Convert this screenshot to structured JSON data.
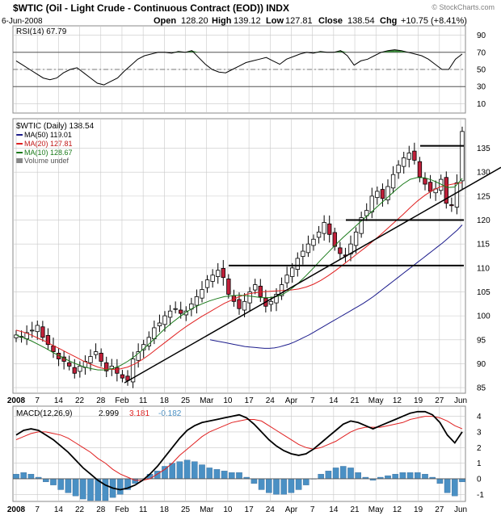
{
  "header": {
    "title": "$WTIC (Oil - Light Crude - Continuous Contract (EOD)) INDX",
    "date": "6-Jun-2008",
    "open_label": "Open",
    "open": "128.20",
    "high_label": "High",
    "high": "139.12",
    "low_label": "Low",
    "low": "127.81",
    "close_label": "Close",
    "close": "138.54",
    "chg_label": "Chg",
    "chg": "+10.75 (+8.41%)",
    "watermark": "© StockCharts.com"
  },
  "colors": {
    "ma50": "#1c1c8c",
    "ma20": "#e02020",
    "ma10": "#1a7a1a",
    "up_candle": "#ffffff",
    "down_candle": "#c0203a",
    "macd": "#000000",
    "signal": "#e02020",
    "histogram": "#4a90c4",
    "rsi_line": "#000000",
    "rsi_fill": "#3a8a3a",
    "grid": "#c8c8c8"
  },
  "x_axis": {
    "labels": [
      "2008",
      "7",
      "14",
      "22",
      "28",
      "Feb",
      "11",
      "18",
      "25",
      "Mar",
      "10",
      "17",
      "24",
      "Apr",
      "7",
      "14",
      "21",
      "May",
      "12",
      "19",
      "27",
      "Jun"
    ]
  },
  "chart_data": [
    {
      "type": "line",
      "title": "RSI(14) 67.79",
      "legend": [
        "RSI(14) 67.79"
      ],
      "ylim": [
        0,
        100
      ],
      "yticks": [
        10,
        30,
        50,
        70,
        90
      ],
      "guides": [
        30,
        50,
        70
      ],
      "series": [
        {
          "name": "RSI(14)",
          "values": [
            60,
            55,
            50,
            45,
            40,
            38,
            40,
            46,
            50,
            52,
            46,
            40,
            34,
            32,
            36,
            40,
            48,
            55,
            62,
            66,
            68,
            70,
            70,
            69,
            71,
            70,
            72,
            64,
            56,
            50,
            47,
            46,
            50,
            54,
            58,
            60,
            62,
            64,
            60,
            56,
            62,
            65,
            68,
            70,
            69,
            71,
            70,
            70,
            72,
            66,
            55,
            60,
            62,
            66,
            70,
            72,
            73,
            72,
            70,
            68,
            66,
            62,
            56,
            50,
            50,
            62,
            68
          ]
        }
      ]
    },
    {
      "type": "candlestick",
      "title": "$WTIC (Daily) 138.54",
      "legend": [
        "$WTIC (Daily) 138.54",
        "MA(50) 119.01",
        "MA(20) 127.81",
        "MA(10) 128.67",
        "Volume undef"
      ],
      "ylim": [
        84,
        141
      ],
      "yticks": [
        85,
        90,
        95,
        100,
        105,
        110,
        115,
        120,
        125,
        130,
        135
      ],
      "closes": [
        96.0,
        95.5,
        96.5,
        97.0,
        98.0,
        95.5,
        94.0,
        92.5,
        91.0,
        90.5,
        89.5,
        88.0,
        89.5,
        90.5,
        91.5,
        92.5,
        90.5,
        88.5,
        89.5,
        88.0,
        87.0,
        86.5,
        91.0,
        92.5,
        94.0,
        95.5,
        97.5,
        98.5,
        100.0,
        101.0,
        101.5,
        100.5,
        101.0,
        102.5,
        104.0,
        105.5,
        107.5,
        108.5,
        109.5,
        108.0,
        104.5,
        103.0,
        101.5,
        103.0,
        105.0,
        106.5,
        104.0,
        102.0,
        103.0,
        104.5,
        106.5,
        108.5,
        110.0,
        112.0,
        113.5,
        115.0,
        116.0,
        117.5,
        119.5,
        117.0,
        114.5,
        113.0,
        112.5,
        115.0,
        117.5,
        120.5,
        122.0,
        125.0,
        126.0,
        124.5,
        127.0,
        129.5,
        131.5,
        133.0,
        134.0,
        132.5,
        129.0,
        127.5,
        126.0,
        126.5,
        128.5,
        123.5,
        123.0,
        127.8,
        138.5
      ],
      "series": [
        {
          "name": "MA(50) 119.01",
          "values": [
            95.0,
            94.8,
            94.6,
            94.4,
            94.2,
            94.0,
            93.8,
            93.6,
            93.5,
            93.4,
            93.3,
            93.2,
            93.2,
            93.3,
            93.5,
            93.8,
            94.1,
            94.5,
            95.0,
            95.5,
            96.0,
            96.6,
            97.2,
            97.8,
            98.4,
            99.0,
            99.6,
            100.2,
            100.8,
            101.4,
            102.0,
            102.6,
            103.3,
            104.0,
            104.8,
            105.6,
            106.4,
            107.2,
            108.0,
            108.8,
            109.6,
            110.4,
            111.2,
            112.0,
            112.8,
            113.6,
            114.4,
            115.2,
            116.1,
            117.0,
            117.9,
            119.0
          ]
        },
        {
          "name": "MA(20) 127.81",
          "values": [
            97.0,
            96.6,
            96.0,
            95.3,
            94.6,
            93.8,
            93.0,
            92.2,
            91.4,
            90.6,
            89.9,
            89.3,
            88.9,
            88.8,
            88.9,
            89.3,
            90.0,
            90.9,
            92.0,
            93.2,
            94.4,
            95.6,
            96.8,
            97.9,
            98.9,
            99.9,
            100.8,
            101.7,
            102.6,
            103.3,
            104.0,
            104.5,
            104.8,
            105.0,
            105.1,
            105.2,
            105.3,
            105.4,
            105.6,
            106.0,
            106.6,
            107.4,
            108.4,
            109.5,
            110.7,
            111.9,
            113.1,
            114.3,
            115.6,
            116.9,
            118.3,
            119.7,
            121.1,
            122.6,
            124.0,
            125.2,
            126.2,
            126.9,
            127.3,
            127.6,
            127.8
          ]
        },
        {
          "name": "MA(10) 128.67",
          "values": [
            96.0,
            95.4,
            94.8,
            94.0,
            93.2,
            92.3,
            91.5,
            90.7,
            90.0,
            89.4,
            89.0,
            88.7,
            88.7,
            89.0,
            89.6,
            90.5,
            91.6,
            92.9,
            94.3,
            95.8,
            97.3,
            98.6,
            99.8,
            100.9,
            101.8,
            102.5,
            103.1,
            103.6,
            104.0,
            104.2,
            104.3,
            104.2,
            104.0,
            103.8,
            103.8,
            104.0,
            104.6,
            105.6,
            106.9,
            108.4,
            110.0,
            111.7,
            113.3,
            114.9,
            116.4,
            117.8,
            119.2,
            120.6,
            122.0,
            123.4,
            124.8,
            126.2,
            127.5,
            128.5,
            128.9,
            128.8,
            128.3,
            127.6,
            126.8,
            126.9,
            128.7
          ]
        }
      ],
      "trendlines": [
        {
          "from": [
            "Feb 4",
            86
          ],
          "to": [
            "Jun 6",
            131
          ]
        },
        {
          "from": [
            "Mar 14",
            110.5
          ],
          "to": [
            "Jun 6",
            110.5
          ]
        },
        {
          "from": [
            "Apr 28",
            120
          ],
          "to": [
            "Jun 6",
            120
          ]
        },
        {
          "from": [
            "May 22",
            135.5
          ],
          "to": [
            "Jun 6",
            135.5
          ]
        }
      ]
    },
    {
      "type": "line+bar",
      "title": "MACD(12,26,9) 2.999, 3.181, -0.182",
      "legend": [
        "MACD(12,26,9)",
        "2.999",
        "3.181",
        "-0.182"
      ],
      "ylim": [
        -1.4,
        4.6
      ],
      "yticks": [
        -1,
        0,
        1,
        2,
        3,
        4
      ],
      "series": [
        {
          "name": "MACD",
          "values": [
            2.8,
            3.1,
            3.2,
            3.1,
            2.8,
            2.5,
            2.1,
            1.7,
            1.2,
            0.7,
            0.3,
            -0.1,
            -0.4,
            -0.6,
            -0.7,
            -0.6,
            -0.4,
            -0.1,
            0.3,
            0.8,
            1.4,
            2.0,
            2.6,
            3.1,
            3.4,
            3.6,
            3.7,
            3.8,
            3.9,
            4.0,
            4.1,
            3.9,
            3.5,
            3.0,
            2.5,
            2.1,
            1.8,
            1.6,
            1.5,
            1.6,
            1.9,
            2.3,
            2.7,
            3.1,
            3.5,
            3.7,
            3.6,
            3.4,
            3.2,
            3.4,
            3.6,
            3.8,
            4.0,
            4.2,
            4.3,
            4.3,
            4.1,
            3.6,
            2.8,
            2.3,
            3.0
          ]
        },
        {
          "name": "Signal",
          "values": [
            2.5,
            2.7,
            2.9,
            3.0,
            3.0,
            2.9,
            2.8,
            2.6,
            2.3,
            2.0,
            1.7,
            1.3,
            1.0,
            0.6,
            0.3,
            0.1,
            -0.1,
            -0.1,
            0.0,
            0.3,
            0.6,
            1.0,
            1.5,
            1.9,
            2.3,
            2.7,
            3.0,
            3.2,
            3.4,
            3.6,
            3.7,
            3.8,
            3.8,
            3.7,
            3.4,
            3.1,
            2.8,
            2.5,
            2.2,
            2.0,
            1.9,
            2.0,
            2.2,
            2.4,
            2.7,
            3.0,
            3.2,
            3.3,
            3.3,
            3.3,
            3.4,
            3.5,
            3.6,
            3.8,
            3.9,
            4.0,
            4.0,
            3.9,
            3.7,
            3.4,
            3.2
          ]
        }
      ],
      "histogram": [
        0.3,
        0.4,
        0.3,
        0.1,
        -0.2,
        -0.4,
        -0.7,
        -0.9,
        -1.1,
        -1.3,
        -1.4,
        -1.4,
        -1.4,
        -1.2,
        -1.0,
        -0.7,
        -0.3,
        0.0,
        0.3,
        0.5,
        0.8,
        1.0,
        1.1,
        1.2,
        1.1,
        0.9,
        0.7,
        0.6,
        0.5,
        0.4,
        0.4,
        0.1,
        -0.3,
        -0.7,
        -0.9,
        -1.0,
        -1.0,
        -0.9,
        -0.7,
        -0.4,
        0.0,
        0.3,
        0.5,
        0.7,
        0.8,
        0.7,
        0.4,
        0.1,
        -0.1,
        0.1,
        0.2,
        0.3,
        0.4,
        0.4,
        0.4,
        0.3,
        0.1,
        -0.3,
        -0.9,
        -1.1,
        -0.2
      ]
    }
  ]
}
